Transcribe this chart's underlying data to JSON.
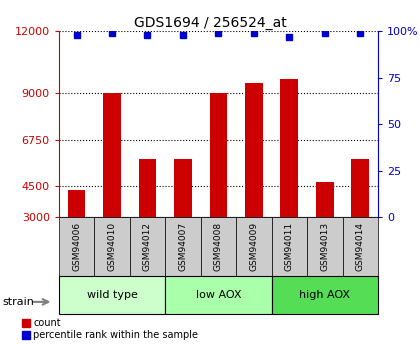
{
  "title": "GDS1694 / 256524_at",
  "categories": [
    "GSM94006",
    "GSM94010",
    "GSM94012",
    "GSM94007",
    "GSM94008",
    "GSM94009",
    "GSM94011",
    "GSM94013",
    "GSM94014"
  ],
  "bar_values": [
    4300,
    9000,
    5800,
    5800,
    9000,
    9500,
    9700,
    4700,
    5800
  ],
  "percentile_values": [
    98,
    99,
    98,
    98,
    99,
    99,
    97,
    99,
    99
  ],
  "ylim_left": [
    3000,
    12000
  ],
  "ylim_right": [
    0,
    100
  ],
  "yticks_left": [
    3000,
    4500,
    6750,
    9000,
    12000
  ],
  "yticks_right": [
    0,
    25,
    50,
    75,
    100
  ],
  "bar_color": "#cc0000",
  "dot_color": "#0000cc",
  "groups": [
    {
      "label": "wild type",
      "indices": [
        0,
        1,
        2
      ],
      "color": "#ccffcc"
    },
    {
      "label": "low AOX",
      "indices": [
        3,
        4,
        5
      ],
      "color": "#aaffaa"
    },
    {
      "label": "high AOX",
      "indices": [
        6,
        7,
        8
      ],
      "color": "#55dd55"
    }
  ],
  "group_colors": [
    "#ccffcc",
    "#aaffaa",
    "#55dd55"
  ],
  "xlabel_strain": "strain",
  "tick_bg_color": "#cccccc",
  "left_axis_color": "#cc0000",
  "right_axis_color": "#0000cc"
}
